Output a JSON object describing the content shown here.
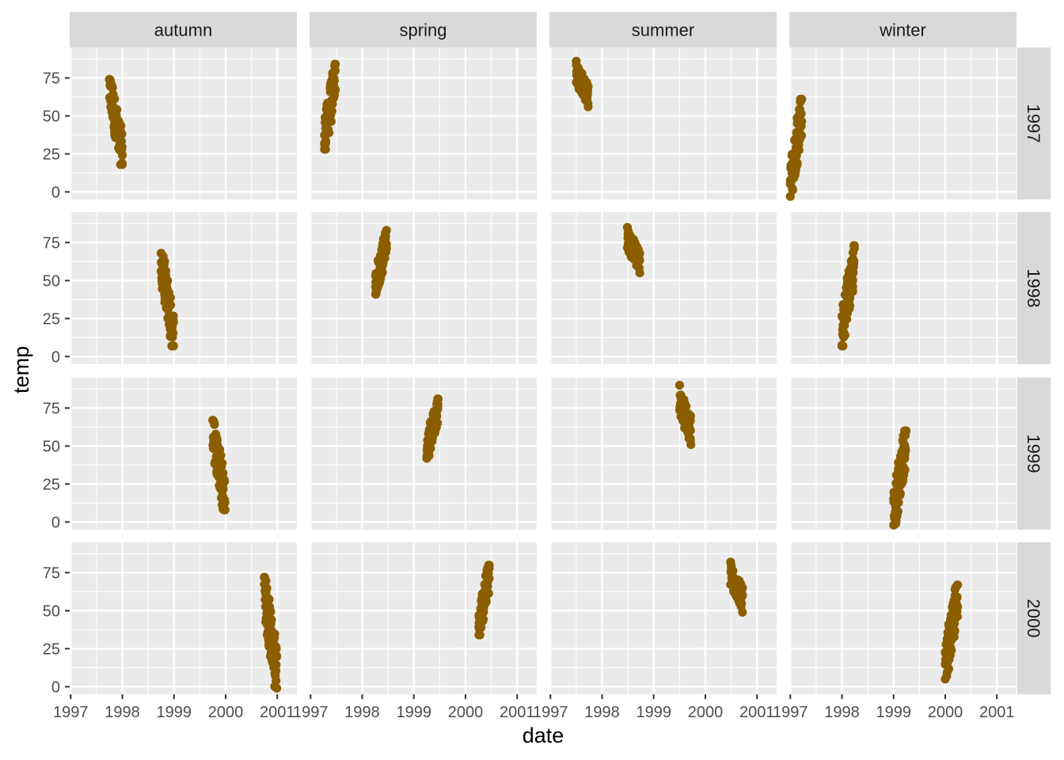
{
  "chart_data": {
    "type": "scatter",
    "xlabel": "date",
    "ylabel": "temp",
    "x_ticks": [
      "1997",
      "1998",
      "1999",
      "2000",
      "2001"
    ],
    "y_ticks": [
      0,
      25,
      50,
      75
    ],
    "xlim": [
      1996.98,
      2001.38
    ],
    "ylim": [
      -5,
      95
    ],
    "point_color": "#8B5E00",
    "panel_bg": "#EBEBEB",
    "strip_bg": "#D9D9D9",
    "grid": true,
    "legend": "none",
    "facet_cols": [
      "autumn",
      "spring",
      "summer",
      "winter"
    ],
    "facet_rows": [
      "1997",
      "1998",
      "1999",
      "2000"
    ],
    "panels": [
      {
        "season": "autumn",
        "year": "1997",
        "x": [
          1997.75,
          1998.0
        ],
        "y": [
          18,
          74
        ]
      },
      {
        "season": "spring",
        "year": "1997",
        "x": [
          1997.27,
          1997.48
        ],
        "y": [
          28,
          84
        ]
      },
      {
        "season": "summer",
        "year": "1997",
        "x": [
          1997.5,
          1997.73
        ],
        "y": [
          56,
          86
        ]
      },
      {
        "season": "winter",
        "year": "1997",
        "x": [
          1997.0,
          1997.22
        ],
        "y": [
          -3,
          61
        ]
      },
      {
        "season": "autumn",
        "year": "1998",
        "x": [
          1998.75,
          1998.99
        ],
        "y": [
          7,
          68
        ]
      },
      {
        "season": "spring",
        "year": "1998",
        "x": [
          1998.26,
          1998.47
        ],
        "y": [
          41,
          83
        ]
      },
      {
        "season": "summer",
        "year": "1998",
        "x": [
          1998.49,
          1998.73
        ],
        "y": [
          55,
          85
        ]
      },
      {
        "season": "winter",
        "year": "1998",
        "x": [
          1998.0,
          1998.24
        ],
        "y": [
          7,
          73
        ]
      },
      {
        "season": "autumn",
        "year": "1999",
        "x": [
          1999.75,
          1999.99
        ],
        "y": [
          8,
          67
        ]
      },
      {
        "season": "spring",
        "year": "1999",
        "x": [
          1999.25,
          1999.47
        ],
        "y": [
          42,
          81
        ]
      },
      {
        "season": "summer",
        "year": "1999",
        "x": [
          1999.5,
          1999.72
        ],
        "y": [
          51,
          90
        ]
      },
      {
        "season": "winter",
        "year": "1999",
        "x": [
          1999.0,
          1999.24
        ],
        "y": [
          -2,
          60
        ]
      },
      {
        "season": "autumn",
        "year": "2000",
        "x": [
          2000.75,
          2000.99
        ],
        "y": [
          -1,
          72
        ]
      },
      {
        "season": "spring",
        "year": "2000",
        "x": [
          2000.26,
          2000.46
        ],
        "y": [
          34,
          80
        ]
      },
      {
        "season": "summer",
        "year": "2000",
        "x": [
          2000.49,
          2000.72
        ],
        "y": [
          49,
          82
        ]
      },
      {
        "season": "winter",
        "year": "2000",
        "x": [
          2000.0,
          2000.24
        ],
        "y": [
          5,
          67
        ]
      }
    ]
  }
}
